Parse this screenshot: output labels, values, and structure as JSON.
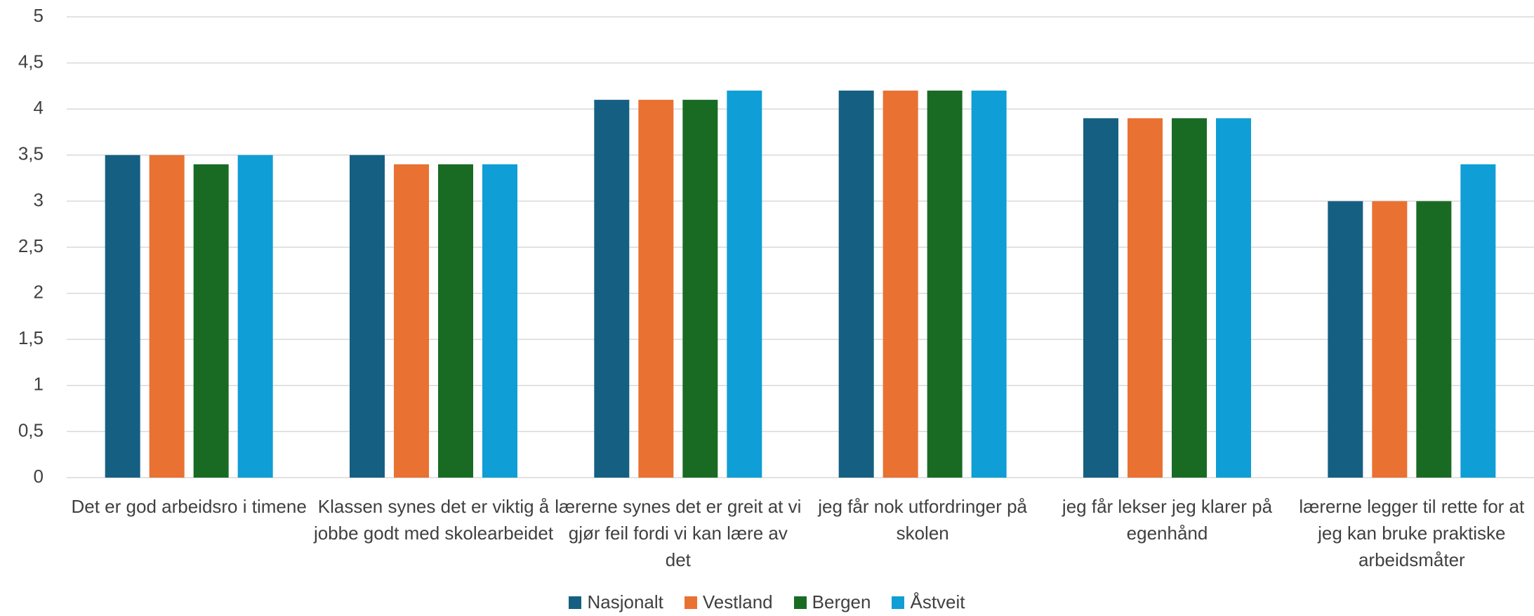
{
  "chart_data": {
    "type": "bar",
    "categories": [
      "Det er god arbeidsro i timene",
      "Klassen synes det er viktig å jobbe godt med skolearbeidet",
      "lærerne synes det er greit at vi gjør feil fordi vi kan lære av det",
      "jeg får nok utfordringer på skolen",
      "jeg får lekser jeg klarer på egenhånd",
      "lærerne legger til rette for at jeg kan bruke praktiske arbeidsmåter"
    ],
    "series": [
      {
        "name": "Nasjonalt",
        "color": "#156082",
        "values": [
          3.5,
          3.5,
          4.1,
          4.2,
          3.9,
          3.0
        ]
      },
      {
        "name": "Vestland",
        "color": "#e97132",
        "values": [
          3.5,
          3.4,
          4.1,
          4.2,
          3.9,
          3.0
        ]
      },
      {
        "name": "Bergen",
        "color": "#196b24",
        "values": [
          3.4,
          3.4,
          4.1,
          4.2,
          3.9,
          3.0
        ]
      },
      {
        "name": "Åstveit",
        "color": "#0f9ed5",
        "values": [
          3.5,
          3.4,
          4.2,
          4.2,
          3.9,
          3.4
        ]
      }
    ],
    "ylim": [
      0,
      5
    ],
    "yticks": [
      0,
      {
        "value": 0.5,
        "label": "0,5"
      },
      1,
      {
        "value": 1.5,
        "label": "1,5"
      },
      2,
      {
        "value": 2.5,
        "label": "2,5"
      },
      3,
      {
        "value": 3.5,
        "label": "3,5"
      },
      4,
      {
        "value": 4.5,
        "label": "4,5"
      },
      5
    ],
    "grid": true,
    "legend": "bottom"
  }
}
